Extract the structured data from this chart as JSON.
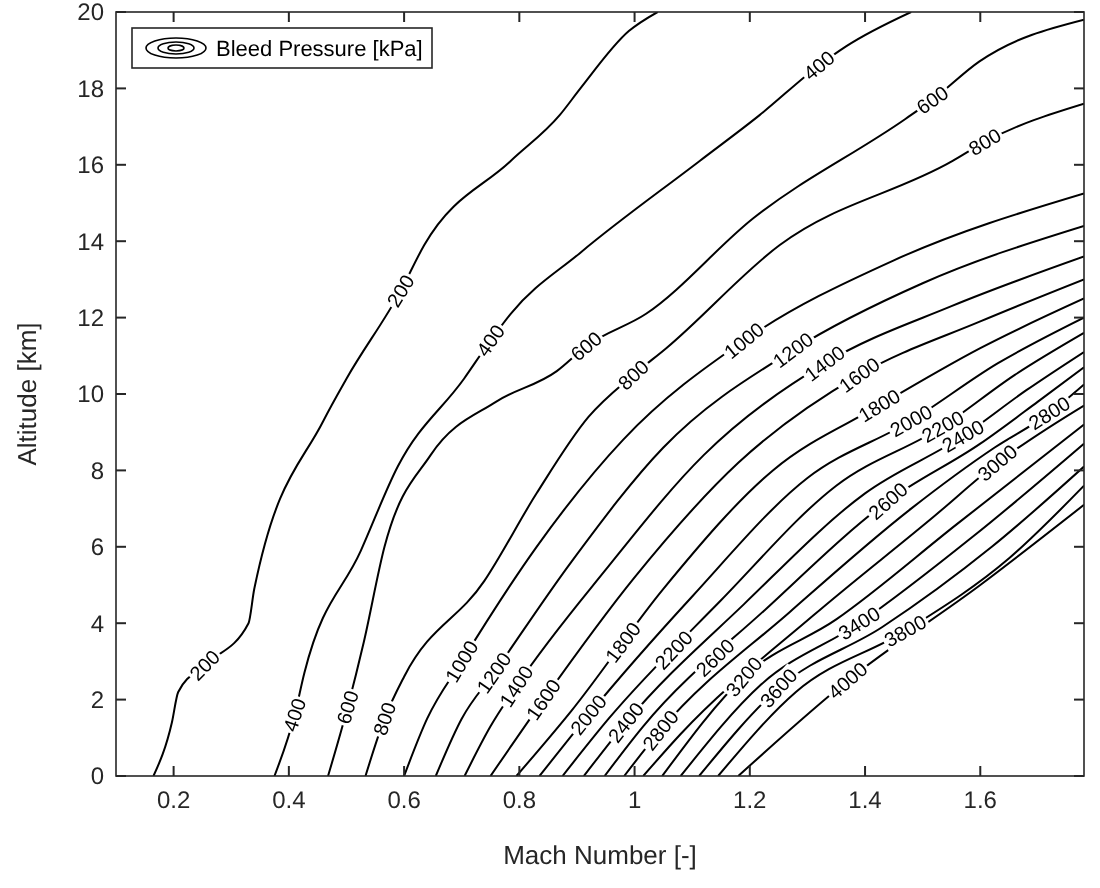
{
  "chart_data": {
    "type": "line",
    "xlabel": "Mach Number [-]",
    "ylabel": "Altitude [km]",
    "legend_title": "Bleed Pressure [kPa]",
    "grid": false,
    "line_style": "solid",
    "marker": "none",
    "xlim": [
      0.1,
      1.78
    ],
    "xticks": [
      0.2,
      0.4,
      0.6,
      0.8,
      1,
      1.2,
      1.4,
      1.6
    ],
    "ylim": [
      0,
      20
    ],
    "yticks": [
      0,
      2,
      4,
      6,
      8,
      10,
      12,
      14,
      16,
      18,
      20
    ],
    "series": [
      {
        "color": "#000000",
        "x": [
          0.165,
          0.197,
          0.208,
          0.254,
          0.33,
          0.34,
          0.46,
          0.5,
          0.594,
          0.635,
          0.785,
          0.87,
          0.906,
          0.99,
          1.04
        ],
        "values": [
          0,
          1.4,
          2.2,
          2.9,
          4.0,
          4.9,
          9.3,
          10.4,
          12.7,
          13.9,
          16.1,
          17.3,
          18.0,
          19.5,
          20
        ]
      },
      {
        "color": "#000000",
        "x": [
          0.375,
          0.41,
          0.427,
          0.525,
          0.589,
          0.704,
          0.75,
          0.785,
          0.906,
          1.113,
          1.217,
          1.32,
          1.367,
          1.48
        ],
        "values": [
          0,
          1.6,
          2.7,
          5.9,
          8.1,
          10.4,
          11.4,
          12.1,
          13.7,
          16.1,
          17.3,
          18.6,
          19.1,
          20
        ]
      },
      {
        "color": "#000000",
        "x": [
          0.468,
          0.502,
          0.53,
          0.566,
          0.646,
          0.76,
          0.865,
          0.916,
          1.02,
          1.206,
          1.47,
          1.517,
          1.598,
          1.78
        ],
        "values": [
          0,
          1.8,
          3.5,
          6.0,
          8.4,
          9.8,
          10.6,
          11.25,
          12.1,
          14.6,
          17.2,
          17.7,
          18.7,
          19.8
        ]
      },
      {
        "color": "#000000",
        "x": [
          0.533,
          0.566,
          0.6,
          0.739,
          0.83,
          0.92,
          0.998,
          1.055,
          1.252,
          1.552,
          1.608,
          1.78
        ],
        "values": [
          0,
          1.5,
          2.6,
          5.1,
          7.4,
          9.4,
          10.5,
          11.2,
          13.9,
          16.1,
          16.6,
          17.6
        ]
      },
      {
        "color": "#000000",
        "x": [
          0.6,
          0.64,
          0.7,
          0.83,
          0.98,
          1.19,
          1.45,
          1.78
        ],
        "values": [
          0,
          1.5,
          3.0,
          6,
          8.8,
          11.4,
          13.5,
          15.25
        ]
      },
      {
        "color": "#000000",
        "x": [
          0.655,
          0.7,
          0.756,
          0.89,
          1.05,
          1.275,
          1.5,
          1.78
        ],
        "values": [
          0,
          1.5,
          2.7,
          5.6,
          8.6,
          11.15,
          12.9,
          14.4
        ]
      },
      {
        "color": "#000000",
        "x": [
          0.705,
          0.75,
          0.795,
          0.95,
          1.12,
          1.33,
          1.55,
          1.78
        ],
        "values": [
          0,
          1.3,
          2.35,
          5.4,
          8.4,
          10.8,
          12.3,
          13.6
        ]
      },
      {
        "color": "#000000",
        "x": [
          0.75,
          0.842,
          1.0,
          1.18,
          1.39,
          1.6,
          1.78
        ],
        "values": [
          0,
          2.0,
          5.2,
          8.2,
          10.5,
          11.9,
          13.0
        ]
      },
      {
        "color": "#000000",
        "x": [
          0.795,
          0.89,
          1.05,
          1.24,
          1.425,
          1.6,
          1.78
        ],
        "values": [
          0,
          1.7,
          4.9,
          8.0,
          9.7,
          11.2,
          12.5
        ]
      },
      {
        "color": "#000000",
        "x": [
          0.835,
          0.92,
          1.1,
          1.3,
          1.48,
          1.63,
          1.78
        ],
        "values": [
          0,
          1.6,
          4.7,
          7.8,
          9.3,
          10.8,
          12.0
        ]
      },
      {
        "color": "#000000",
        "x": [
          0.875,
          0.955,
          1.15,
          1.35,
          1.535,
          1.66,
          1.78
        ],
        "values": [
          0,
          1.5,
          4.6,
          7.6,
          9.15,
          10.5,
          11.6
        ]
      },
      {
        "color": "#000000",
        "x": [
          0.912,
          0.985,
          1.19,
          1.4,
          1.57,
          1.68,
          1.78
        ],
        "values": [
          0,
          1.4,
          4.5,
          7.4,
          8.9,
          10.1,
          11.1
        ]
      },
      {
        "color": "#000000",
        "x": [
          0.948,
          1.015,
          1.23,
          1.44,
          1.6,
          1.7,
          1.78
        ],
        "values": [
          0,
          1.3,
          4.4,
          7.2,
          8.7,
          9.8,
          10.7
        ]
      },
      {
        "color": "#000000",
        "x": [
          0.982,
          1.045,
          1.27,
          1.48,
          1.625,
          1.72,
          1.78
        ],
        "values": [
          0,
          1.2,
          4.3,
          7.0,
          8.6,
          9.5,
          10.25
        ]
      },
      {
        "color": "#000000",
        "x": [
          1.015,
          1.08,
          1.31,
          1.52,
          1.63,
          1.78
        ],
        "values": [
          0,
          1.1,
          4.2,
          6.8,
          8.2,
          9.7
        ]
      },
      {
        "color": "#000000",
        "x": [
          1.048,
          1.19,
          1.35,
          1.56,
          1.78
        ],
        "values": [
          0,
          2.6,
          4.1,
          6.6,
          9.2
        ]
      },
      {
        "color": "#000000",
        "x": [
          1.08,
          1.22,
          1.39,
          1.59,
          1.78
        ],
        "values": [
          0,
          2.4,
          4.0,
          6.3,
          8.7
        ]
      },
      {
        "color": "#000000",
        "x": [
          1.112,
          1.25,
          1.43,
          1.62,
          1.78
        ],
        "values": [
          0,
          2.3,
          3.9,
          6.0,
          8.1
        ]
      },
      {
        "color": "#000000",
        "x": [
          1.145,
          1.28,
          1.47,
          1.65,
          1.78
        ],
        "values": [
          0,
          2.2,
          3.8,
          5.7,
          7.6
        ]
      },
      {
        "color": "#000000",
        "x": [
          1.18,
          1.37,
          1.6,
          1.78
        ],
        "values": [
          0,
          2.5,
          5.0,
          7.1
        ]
      }
    ],
    "annotations": [
      {
        "text": "200",
        "x": 0.254,
        "y": 2.9
      },
      {
        "text": "200",
        "x": 0.594,
        "y": 12.7
      },
      {
        "text": "400",
        "x": 0.41,
        "y": 1.6
      },
      {
        "text": "400",
        "x": 0.75,
        "y": 11.4
      },
      {
        "text": "400",
        "x": 1.32,
        "y": 18.6
      },
      {
        "text": "600",
        "x": 0.502,
        "y": 1.8
      },
      {
        "text": "600",
        "x": 0.916,
        "y": 11.25
      },
      {
        "text": "600",
        "x": 1.517,
        "y": 17.7
      },
      {
        "text": "800",
        "x": 0.566,
        "y": 1.5
      },
      {
        "text": "800",
        "x": 0.998,
        "y": 10.5
      },
      {
        "text": "800",
        "x": 1.608,
        "y": 16.6
      },
      {
        "text": "1000",
        "x": 0.7,
        "y": 3.0
      },
      {
        "text": "1000",
        "x": 1.19,
        "y": 11.4
      },
      {
        "text": "1200",
        "x": 0.756,
        "y": 2.7
      },
      {
        "text": "1200",
        "x": 1.275,
        "y": 11.15
      },
      {
        "text": "1400",
        "x": 0.795,
        "y": 2.35
      },
      {
        "text": "1400",
        "x": 1.33,
        "y": 10.8
      },
      {
        "text": "1600",
        "x": 0.842,
        "y": 2.0
      },
      {
        "text": "1600",
        "x": 1.39,
        "y": 10.5
      },
      {
        "text": "1800",
        "x": 0.98,
        "y": 3.5
      },
      {
        "text": "1800",
        "x": 1.425,
        "y": 9.7
      },
      {
        "text": "2000",
        "x": 0.92,
        "y": 1.6
      },
      {
        "text": "2000",
        "x": 1.48,
        "y": 9.3
      },
      {
        "text": "2200",
        "x": 1.068,
        "y": 3.3
      },
      {
        "text": "2200",
        "x": 1.535,
        "y": 9.15
      },
      {
        "text": "2400",
        "x": 0.985,
        "y": 1.4
      },
      {
        "text": "2400",
        "x": 1.57,
        "y": 8.9
      },
      {
        "text": "2600",
        "x": 1.14,
        "y": 3.1
      },
      {
        "text": "2600",
        "x": 1.44,
        "y": 7.2
      },
      {
        "text": "2800",
        "x": 1.045,
        "y": 1.2
      },
      {
        "text": "2800",
        "x": 1.72,
        "y": 9.5
      },
      {
        "text": "3000",
        "x": 1.63,
        "y": 8.2
      },
      {
        "text": "3200",
        "x": 1.19,
        "y": 2.6
      },
      {
        "text": "3400",
        "x": 1.39,
        "y": 4.0
      },
      {
        "text": "3600",
        "x": 1.25,
        "y": 2.3
      },
      {
        "text": "3800",
        "x": 1.47,
        "y": 3.8
      },
      {
        "text": "4000",
        "x": 1.37,
        "y": 2.5
      }
    ]
  }
}
